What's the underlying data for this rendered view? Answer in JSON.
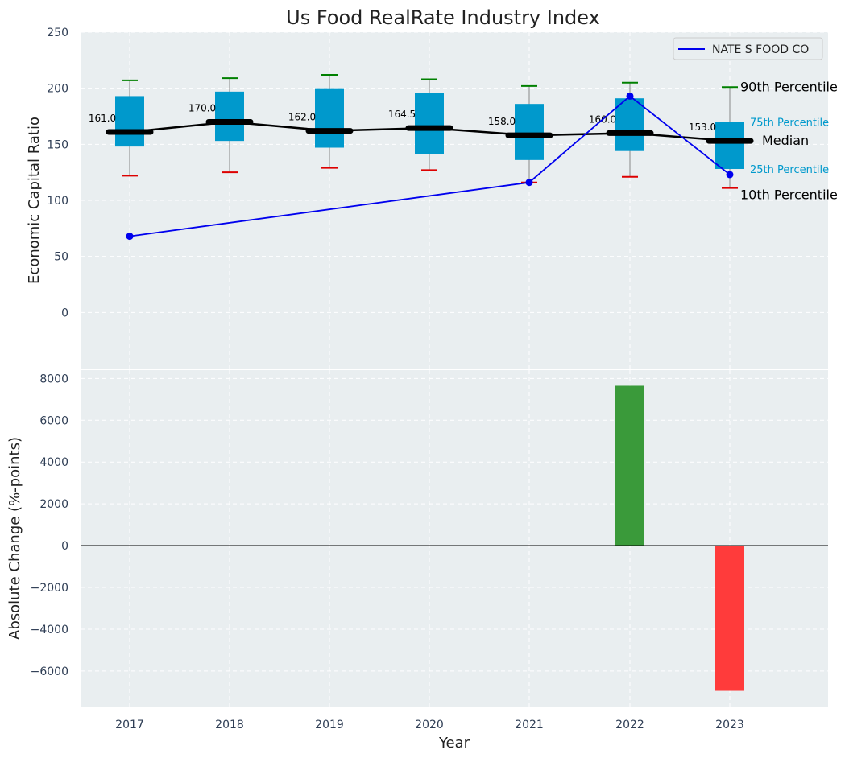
{
  "chart_data": [
    {
      "type": "box",
      "title": "Us Food RealRate Industry Index",
      "ylabel": "Economic Capital Ratio",
      "ylim": [
        -50,
        250
      ],
      "yticks": [
        0,
        50,
        100,
        150,
        200,
        250
      ],
      "categories": [
        "2017",
        "2018",
        "2019",
        "2020",
        "2021",
        "2022",
        "2023"
      ],
      "boxes": [
        {
          "p10": 122,
          "p25": 148,
          "median": 161.0,
          "p75": 193,
          "p90": 207,
          "label": "161.0"
        },
        {
          "p10": 125,
          "p25": 153,
          "median": 170.0,
          "p75": 197,
          "p90": 209,
          "label": "170.0"
        },
        {
          "p10": 129,
          "p25": 147,
          "median": 162.0,
          "p75": 200,
          "p90": 212,
          "label": "162.0"
        },
        {
          "p10": 127,
          "p25": 141,
          "median": 164.5,
          "p75": 196,
          "p90": 208,
          "label": "164.5"
        },
        {
          "p10": 116,
          "p25": 136,
          "median": 158.0,
          "p75": 186,
          "p90": 202,
          "label": "158.0"
        },
        {
          "p10": 121,
          "p25": 144,
          "median": 160.0,
          "p75": 191,
          "p90": 205,
          "label": "160.0"
        },
        {
          "p10": 111,
          "p25": 128,
          "median": 153.0,
          "p75": 170,
          "p90": 201,
          "label": "153.0"
        }
      ],
      "series": [
        {
          "name": "NATE S FOOD CO",
          "x": [
            "2017",
            "2021",
            "2022",
            "2023"
          ],
          "values": [
            68,
            116,
            193,
            123
          ],
          "color": "#0000ee"
        }
      ],
      "legend": "top-right",
      "percentile_labels": {
        "p90": "90th Percentile",
        "p75": "75th Percentile",
        "median": "Median",
        "p25": "25th Percentile",
        "p10": "10th Percentile"
      },
      "colors": {
        "box": "#0099cc",
        "median": "#000000",
        "whisker_top": "#008000",
        "whisker_bottom": "#dd0000"
      },
      "grid": true
    },
    {
      "type": "bar",
      "xlabel": "Year",
      "ylabel": "Absolute Change (%-points)",
      "ylim": [
        -7700,
        8400
      ],
      "yticks": [
        -6000,
        -4000,
        -2000,
        0,
        2000,
        4000,
        6000,
        8000
      ],
      "categories": [
        "2017",
        "2018",
        "2019",
        "2020",
        "2021",
        "2022",
        "2023"
      ],
      "values": [
        null,
        null,
        null,
        null,
        null,
        7650,
        -6950
      ],
      "colors": {
        "positive": "#3a9a3a",
        "negative": "#ff3b3b"
      },
      "grid": true
    }
  ]
}
